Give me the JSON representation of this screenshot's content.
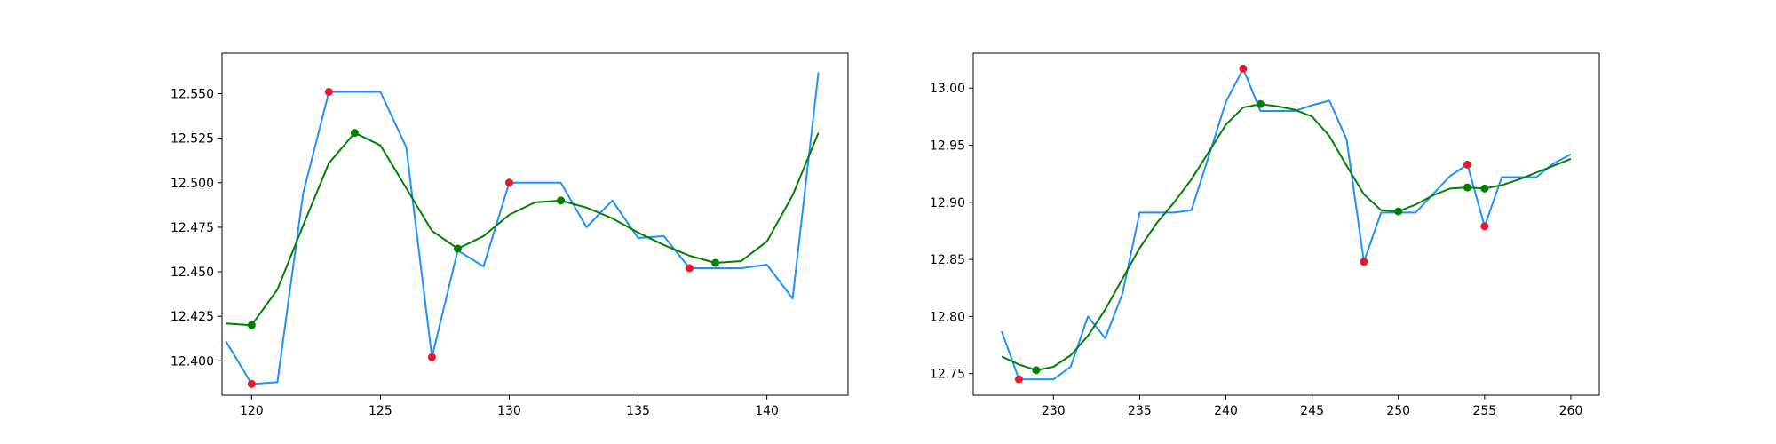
{
  "figure": {
    "background": "#ffffff"
  },
  "chart_data": [
    {
      "type": "line",
      "title": "",
      "xlabel": "",
      "ylabel": "",
      "xlim": [
        118.85,
        143.15
      ],
      "ylim": [
        12.3807,
        12.5727
      ],
      "grid": false,
      "legend": "none",
      "xticks": [
        120,
        125,
        130,
        135,
        140
      ],
      "xtick_labels": [
        "120",
        "125",
        "130",
        "135",
        "140"
      ],
      "yticks": [
        12.4,
        12.425,
        12.45,
        12.475,
        12.5,
        12.525,
        12.55
      ],
      "ytick_labels": [
        "12.400",
        "12.425",
        "12.450",
        "12.475",
        "12.500",
        "12.525",
        "12.550"
      ],
      "series": [
        {
          "kind": "line",
          "color": "#1e90ff",
          "x": [
            119,
            120,
            121,
            122,
            123,
            124,
            125,
            126,
            127,
            128,
            129,
            130,
            131,
            132,
            133,
            134,
            135,
            136,
            137,
            138,
            139,
            140,
            141,
            142
          ],
          "y": [
            12.411,
            12.387,
            12.388,
            12.494,
            12.551,
            12.551,
            12.551,
            12.52,
            12.402,
            12.462,
            12.453,
            12.5,
            12.5,
            12.5,
            12.475,
            12.49,
            12.469,
            12.47,
            12.452,
            12.452,
            12.452,
            12.454,
            12.435,
            12.562
          ]
        },
        {
          "kind": "line",
          "color": "#008000",
          "x": [
            119,
            120,
            121,
            122,
            123,
            124,
            125,
            126,
            127,
            128,
            129,
            130,
            131,
            132,
            133,
            134,
            135,
            136,
            137,
            138,
            139,
            140,
            141,
            142
          ],
          "y": [
            12.421,
            12.42,
            12.44,
            12.476,
            12.511,
            12.528,
            12.521,
            12.497,
            12.473,
            12.463,
            12.47,
            12.482,
            12.489,
            12.49,
            12.486,
            12.48,
            12.472,
            12.465,
            12.459,
            12.455,
            12.456,
            12.467,
            12.493,
            12.528
          ]
        },
        {
          "kind": "scatter",
          "color": "#e8192c",
          "x": [
            120,
            123,
            127,
            130,
            137
          ],
          "y": [
            12.387,
            12.551,
            12.402,
            12.5,
            12.452
          ]
        },
        {
          "kind": "scatter",
          "color": "#008000",
          "x": [
            120,
            124,
            128,
            132,
            138
          ],
          "y": [
            12.42,
            12.528,
            12.463,
            12.49,
            12.455
          ]
        }
      ]
    },
    {
      "type": "line",
      "title": "",
      "xlabel": "",
      "ylabel": "",
      "xlim": [
        225.35,
        261.65
      ],
      "ylim": [
        12.7311,
        13.0305
      ],
      "grid": false,
      "legend": "none",
      "xticks": [
        230,
        235,
        240,
        245,
        250,
        255,
        260
      ],
      "xtick_labels": [
        "230",
        "235",
        "240",
        "245",
        "250",
        "255",
        "260"
      ],
      "yticks": [
        12.75,
        12.8,
        12.85,
        12.9,
        12.95,
        13.0
      ],
      "ytick_labels": [
        "12.75",
        "12.80",
        "12.85",
        "12.90",
        "12.95",
        "13.00"
      ],
      "series": [
        {
          "kind": "line",
          "color": "#1e90ff",
          "x": [
            227,
            228,
            229,
            230,
            231,
            232,
            233,
            234,
            235,
            236,
            237,
            238,
            239,
            240,
            241,
            242,
            243,
            244,
            245,
            246,
            247,
            248,
            249,
            250,
            251,
            252,
            253,
            254,
            255,
            256,
            257,
            258,
            259,
            260
          ],
          "y": [
            12.787,
            12.745,
            12.745,
            12.745,
            12.756,
            12.8,
            12.781,
            12.82,
            12.891,
            12.891,
            12.891,
            12.893,
            12.94,
            12.988,
            13.017,
            12.98,
            12.98,
            12.98,
            12.985,
            12.989,
            12.955,
            12.848,
            12.891,
            12.891,
            12.891,
            12.907,
            12.923,
            12.933,
            12.879,
            12.922,
            12.922,
            12.922,
            12.934,
            12.942
          ]
        },
        {
          "kind": "line",
          "color": "#008000",
          "x": [
            227,
            228,
            229,
            230,
            231,
            232,
            233,
            234,
            235,
            236,
            237,
            238,
            239,
            240,
            241,
            242,
            243,
            244,
            245,
            246,
            247,
            248,
            249,
            250,
            251,
            252,
            253,
            254,
            255,
            256,
            257,
            258,
            259,
            260
          ],
          "y": [
            12.765,
            12.758,
            12.753,
            12.756,
            12.766,
            12.783,
            12.806,
            12.833,
            12.86,
            12.882,
            12.9,
            12.92,
            12.944,
            12.968,
            12.983,
            12.986,
            12.984,
            12.981,
            12.975,
            12.958,
            12.932,
            12.907,
            12.893,
            12.892,
            12.898,
            12.906,
            12.912,
            12.913,
            12.912,
            12.915,
            12.92,
            12.926,
            12.932,
            12.938
          ]
        },
        {
          "kind": "scatter",
          "color": "#e8192c",
          "x": [
            228,
            241,
            248,
            254,
            255
          ],
          "y": [
            12.745,
            13.017,
            12.848,
            12.933,
            12.879
          ]
        },
        {
          "kind": "scatter",
          "color": "#008000",
          "x": [
            229,
            242,
            250,
            254,
            255
          ],
          "y": [
            12.753,
            12.986,
            12.892,
            12.913,
            12.912
          ]
        }
      ]
    }
  ]
}
